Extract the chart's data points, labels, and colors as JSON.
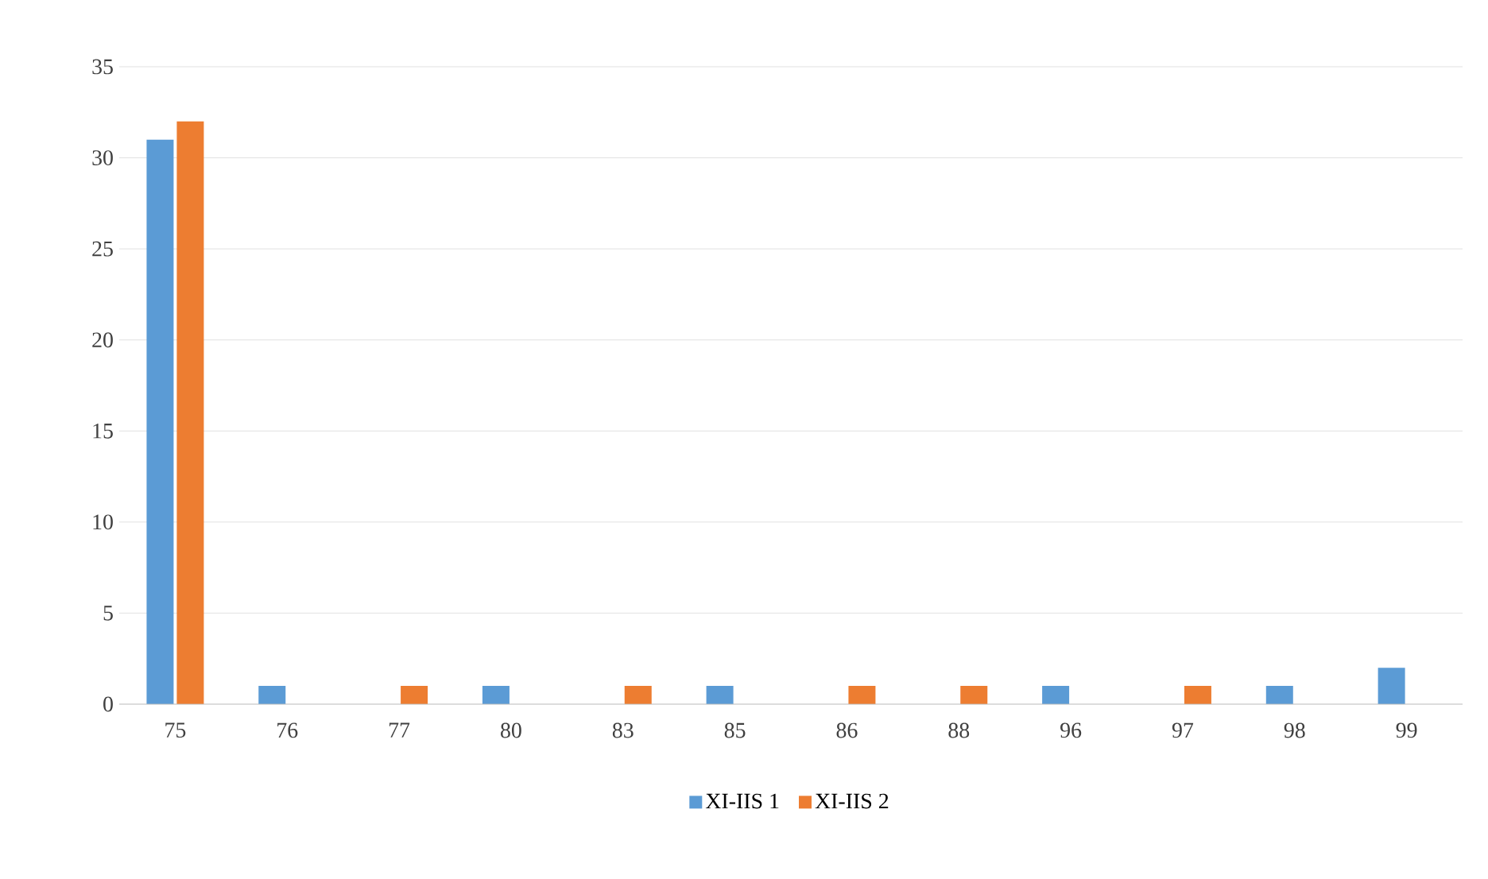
{
  "chart_data": {
    "type": "bar",
    "categories": [
      "75",
      "76",
      "77",
      "80",
      "83",
      "85",
      "86",
      "88",
      "96",
      "97",
      "98",
      "99"
    ],
    "series": [
      {
        "name": "XI-IIS 1",
        "color": "#5b9bd5",
        "values": [
          31,
          1,
          0,
          1,
          0,
          1,
          0,
          0,
          1,
          0,
          1,
          2
        ]
      },
      {
        "name": "XI-IIS 2",
        "color": "#ed7d31",
        "values": [
          32,
          0,
          1,
          0,
          1,
          0,
          1,
          1,
          0,
          1,
          0,
          0
        ]
      }
    ],
    "ylim": [
      0,
      35
    ],
    "yticks": [
      0,
      5,
      10,
      15,
      20,
      25,
      30,
      35
    ],
    "grid": "y",
    "legend": "bottom"
  }
}
